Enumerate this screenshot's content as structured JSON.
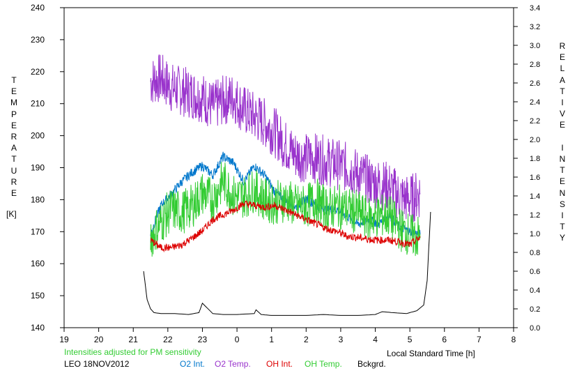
{
  "chart_data": {
    "type": "line",
    "x_axis": {
      "label": "Local Standard Time [h]",
      "ticks": [
        "19",
        "20",
        "21",
        "22",
        "23",
        "0",
        "1",
        "2",
        "3",
        "4",
        "5",
        "6",
        "7",
        "8"
      ],
      "range": [
        19,
        32
      ]
    },
    "y_left": {
      "label_letters": [
        "T",
        "E",
        "M",
        "P",
        "E",
        "R",
        "A",
        "T",
        "U",
        "R",
        "E"
      ],
      "unit": "[K]",
      "range": [
        140,
        240
      ],
      "ticks": [
        "140",
        "150",
        "160",
        "170",
        "180",
        "190",
        "200",
        "210",
        "220",
        "230",
        "240"
      ]
    },
    "y_right": {
      "label_letters": [
        "R",
        "E",
        "L",
        "A",
        "T",
        "I",
        "V",
        "E",
        "",
        "I",
        "N",
        "T",
        "E",
        "N",
        "S",
        "I",
        "T",
        "Y"
      ],
      "range": [
        0,
        3.4
      ],
      "ticks": [
        "0.0",
        "0.2",
        "0.4",
        "0.6",
        "0.8",
        "1.0",
        "1.2",
        "1.4",
        "1.6",
        "1.8",
        "2.0",
        "2.2",
        "2.4",
        "2.6",
        "2.8",
        "3.0",
        "3.2",
        "3.4"
      ]
    },
    "grid": false,
    "series": [
      {
        "name": "O2 Temp.",
        "color": "#9933cc",
        "axis": "left",
        "x": [
          21.5,
          21.8,
          22.1,
          22.4,
          22.7,
          23.0,
          23.3,
          23.6,
          23.9,
          24.2,
          24.5,
          24.8,
          25.1,
          25.4,
          25.7,
          26.0,
          26.3,
          26.6,
          26.9,
          27.2,
          27.5,
          27.8,
          28.1,
          28.4,
          28.7,
          29.0,
          29.3
        ],
        "y": [
          217,
          218,
          215,
          214,
          213,
          212,
          209,
          211,
          212,
          208,
          206,
          204,
          201,
          197,
          194,
          193,
          193,
          192,
          191,
          190,
          188,
          186,
          185,
          184,
          181,
          180,
          182
        ]
      },
      {
        "name": "O2 Int.",
        "color": "#0077cc",
        "axis": "right",
        "x": [
          21.5,
          21.8,
          22.1,
          22.4,
          22.7,
          23.0,
          23.3,
          23.6,
          23.9,
          24.2,
          24.5,
          24.8,
          25.1,
          25.4,
          25.7,
          26.0,
          26.3,
          26.6,
          26.9,
          27.2,
          27.5,
          27.8,
          28.1,
          28.4,
          28.7,
          29.0,
          29.3
        ],
        "y": [
          1.0,
          1.3,
          1.42,
          1.55,
          1.65,
          1.72,
          1.62,
          1.82,
          1.75,
          1.55,
          1.72,
          1.62,
          1.44,
          1.35,
          1.28,
          1.37,
          1.3,
          1.25,
          1.26,
          1.18,
          1.1,
          1.15,
          1.1,
          1.2,
          1.07,
          1.02,
          0.99
        ]
      },
      {
        "name": "OH Int.",
        "color": "#dd0000",
        "axis": "right",
        "x": [
          21.5,
          21.8,
          22.1,
          22.4,
          22.7,
          23.0,
          23.3,
          23.6,
          23.9,
          24.2,
          24.5,
          24.8,
          25.1,
          25.4,
          25.7,
          26.0,
          26.3,
          26.6,
          26.9,
          27.2,
          27.5,
          27.8,
          28.1,
          28.4,
          28.7,
          29.0,
          29.3
        ],
        "y": [
          0.93,
          0.85,
          0.85,
          0.88,
          0.95,
          1.03,
          1.15,
          1.2,
          1.25,
          1.32,
          1.3,
          1.28,
          1.3,
          1.25,
          1.2,
          1.15,
          1.1,
          1.05,
          1.02,
          0.97,
          0.96,
          0.94,
          0.93,
          0.93,
          0.91,
          0.88,
          0.96
        ]
      },
      {
        "name": "OH Temp.",
        "color": "#33cc33",
        "axis": "left",
        "x": [
          21.5,
          21.8,
          22.1,
          22.4,
          22.7,
          23.0,
          23.3,
          23.6,
          23.9,
          24.2,
          24.5,
          24.8,
          25.1,
          25.4,
          25.7,
          26.0,
          26.3,
          26.6,
          26.9,
          27.2,
          27.5,
          27.8,
          28.1,
          28.4,
          28.7,
          29.0,
          29.3
        ],
        "y": [
          168,
          173,
          177,
          176,
          178,
          182,
          180,
          186,
          181,
          181,
          183,
          180,
          179,
          180,
          178,
          178,
          180,
          177,
          178,
          177,
          176,
          174,
          175,
          175,
          171,
          169,
          168
        ]
      },
      {
        "name": "Bckgrd.",
        "color": "#000000",
        "axis": "right",
        "x": [
          21.3,
          21.4,
          21.5,
          21.6,
          21.8,
          22.2,
          22.6,
          22.9,
          23.0,
          23.3,
          23.6,
          24.0,
          24.5,
          24.55,
          24.7,
          25.0,
          25.5,
          26.0,
          26.5,
          27.0,
          27.5,
          28.0,
          28.2,
          28.5,
          28.9,
          29.2,
          29.4,
          29.5,
          29.6
        ],
        "y": [
          0.6,
          0.3,
          0.2,
          0.16,
          0.15,
          0.15,
          0.14,
          0.16,
          0.26,
          0.15,
          0.14,
          0.14,
          0.15,
          0.19,
          0.14,
          0.13,
          0.13,
          0.13,
          0.14,
          0.13,
          0.13,
          0.14,
          0.17,
          0.16,
          0.15,
          0.18,
          0.24,
          0.5,
          1.23
        ]
      }
    ]
  },
  "notes": {
    "adjust": "Intensities adjusted for PM sensitivity",
    "station": "LEO 18NOV2012"
  }
}
